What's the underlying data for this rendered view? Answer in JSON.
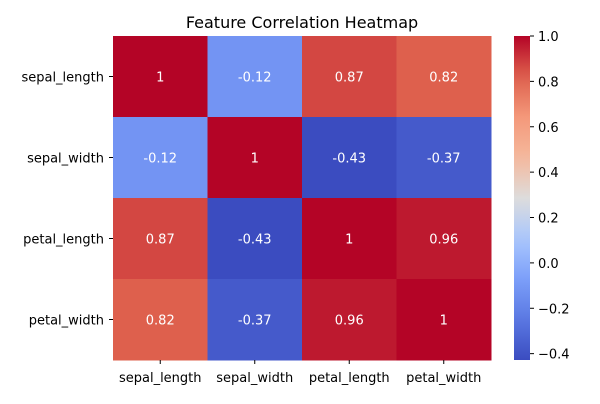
{
  "chart_data": {
    "type": "heatmap",
    "title": "Feature Correlation Heatmap",
    "colormap": "coolwarm",
    "row_labels": [
      "sepal_length",
      "sepal_width",
      "petal_length",
      "petal_width"
    ],
    "col_labels": [
      "sepal_length",
      "sepal_width",
      "petal_length",
      "petal_width"
    ],
    "values": [
      [
        1,
        -0.12,
        0.87,
        0.82
      ],
      [
        -0.12,
        1,
        -0.43,
        -0.37
      ],
      [
        0.87,
        -0.43,
        1,
        0.96
      ],
      [
        0.82,
        -0.37,
        0.96,
        1
      ]
    ],
    "annotations": [
      [
        "1",
        "-0.12",
        "0.87",
        "0.82"
      ],
      [
        "-0.12",
        "1",
        "-0.43",
        "-0.37"
      ],
      [
        "0.87",
        "-0.43",
        "1",
        "0.96"
      ],
      [
        "0.82",
        "-0.37",
        "0.96",
        "1"
      ]
    ],
    "colorbar": {
      "range": [
        -0.428,
        1.0
      ],
      "ticks": [
        1.0,
        0.8,
        0.6,
        0.4,
        0.2,
        0.0,
        -0.2,
        -0.4
      ],
      "tick_labels": [
        "1.0",
        "0.8",
        "0.6",
        "0.4",
        "0.2",
        "0.0",
        "−0.2",
        "−0.4"
      ]
    }
  }
}
